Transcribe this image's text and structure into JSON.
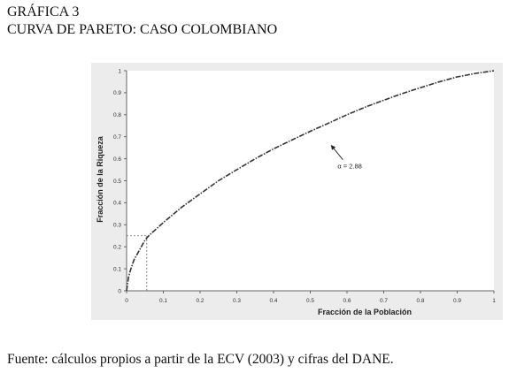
{
  "caption": {
    "label": "GRÁFICA 3",
    "title": "CURVA DE PARETO: CASO COLOMBIANO"
  },
  "source_note": "Fuente: cálculos propios a partir de la ECV (2003) y cifras del DANE.",
  "chart_data": {
    "type": "line",
    "xlabel": "Fracción de la Población",
    "ylabel": "Fracción de la Riqueza",
    "xlim": [
      0,
      1
    ],
    "ylim": [
      0,
      1
    ],
    "x_ticks": [
      "0",
      "0.1",
      "0.2",
      "0.3",
      "0.4",
      "0.5",
      "0.6",
      "0.7",
      "0.8",
      "0.9",
      "1"
    ],
    "y_ticks": [
      "0",
      "0.1",
      "0.2",
      "0.3",
      "0.4",
      "0.5",
      "0.6",
      "0.7",
      "0.8",
      "0.9",
      "1"
    ],
    "grid": false,
    "series": [
      {
        "style": "dash-dot",
        "color": "#333333",
        "x": [
          0,
          0.005,
          0.01,
          0.02,
          0.03,
          0.04,
          0.05,
          0.06,
          0.08,
          0.1,
          0.15,
          0.2,
          0.25,
          0.3,
          0.35,
          0.4,
          0.45,
          0.5,
          0.55,
          0.6,
          0.65,
          0.7,
          0.75,
          0.8,
          0.85,
          0.9,
          0.95,
          1.0
        ],
        "y": [
          0,
          0.06,
          0.09,
          0.14,
          0.17,
          0.2,
          0.23,
          0.25,
          0.28,
          0.31,
          0.38,
          0.44,
          0.5,
          0.55,
          0.6,
          0.645,
          0.685,
          0.725,
          0.762,
          0.8,
          0.835,
          0.866,
          0.896,
          0.923,
          0.949,
          0.972,
          0.988,
          1.0
        ]
      }
    ],
    "reference_point": {
      "x": 0.055,
      "y": 0.25
    },
    "annotation": {
      "text": "α = 2.88",
      "x": 0.555,
      "y": 0.68
    }
  }
}
